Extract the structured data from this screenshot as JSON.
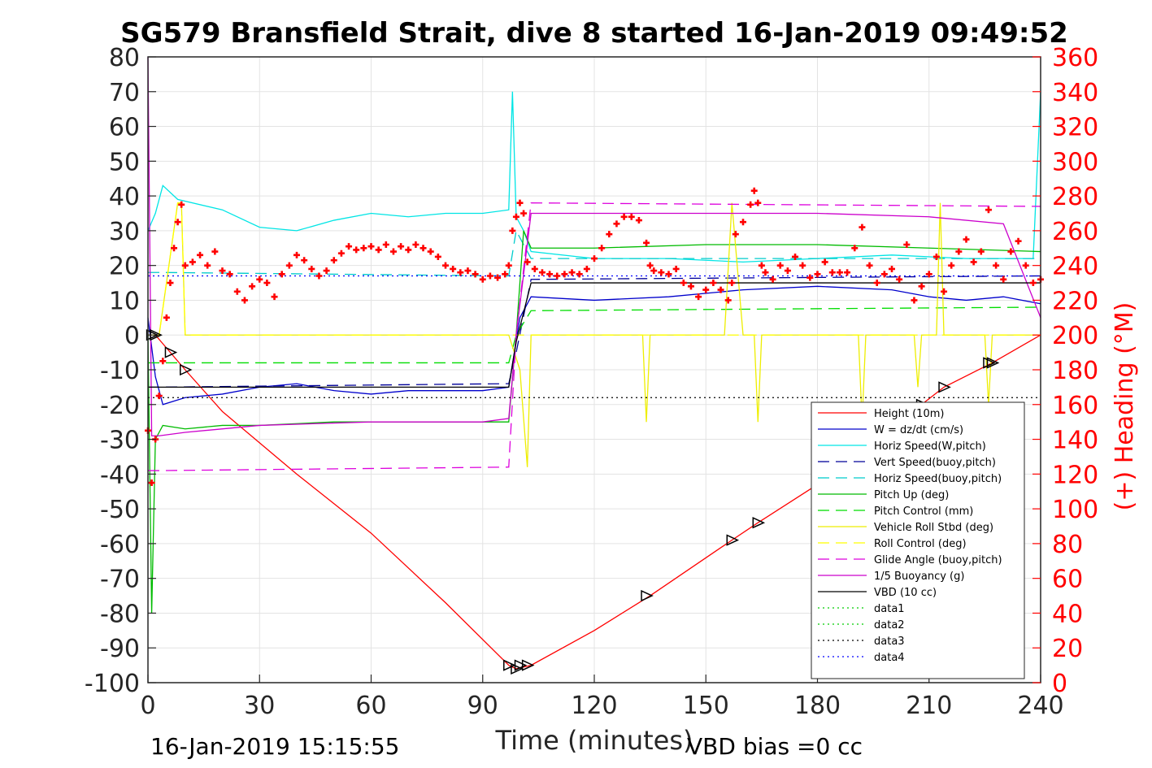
{
  "chart_data": {
    "type": "line",
    "title": "SG579 Bransfield Strait, dive 8 started 16-Jan-2019 09:49:52",
    "xlabel": "Time (minutes)",
    "ylabel_right": "(+) Heading (°M)",
    "footer_left": "16-Jan-2019 15:15:55",
    "footer_right": "VBD bias =0 cc",
    "xlim": [
      0,
      240
    ],
    "ylim": [
      -100,
      80
    ],
    "ylim_right": [
      0,
      360
    ],
    "xticks": [
      0,
      30,
      60,
      90,
      120,
      150,
      180,
      210,
      240
    ],
    "yticks": [
      80,
      70,
      60,
      50,
      40,
      30,
      20,
      10,
      0,
      -10,
      -20,
      -30,
      -40,
      -50,
      -60,
      -70,
      -80,
      -90,
      -100
    ],
    "yticks_right": [
      360,
      340,
      320,
      300,
      280,
      260,
      240,
      220,
      200,
      180,
      160,
      140,
      120,
      100,
      80,
      60,
      40,
      20,
      0
    ],
    "grid": true,
    "legend_position": "bottom-right",
    "series": [
      {
        "name": "Height (10m)",
        "color": "#ff0000",
        "style": "solid",
        "x": [
          0,
          1,
          2,
          10,
          20,
          40,
          60,
          80,
          97,
          99,
          103,
          120,
          135,
          157,
          164,
          180,
          208,
          214,
          227,
          240
        ],
        "y": [
          0,
          0,
          0,
          -10,
          -22,
          -40,
          -57,
          -77,
          -95,
          -96,
          -95,
          -85,
          -75,
          -59,
          -54,
          -43,
          -20,
          -15,
          -8,
          0
        ]
      },
      {
        "name": "W = dz/dt (cm/s)",
        "color": "#0000cc",
        "style": "solid",
        "x": [
          0,
          2,
          4,
          10,
          20,
          30,
          40,
          50,
          60,
          70,
          80,
          90,
          97,
          100,
          103,
          120,
          140,
          160,
          180,
          200,
          210,
          220,
          230,
          240
        ],
        "y": [
          5,
          -12,
          -20,
          -18,
          -17,
          -15,
          -14,
          -16,
          -17,
          -16,
          -16,
          -16,
          -15,
          5,
          11,
          10,
          11,
          13,
          14,
          13,
          11,
          10,
          11,
          9
        ]
      },
      {
        "name": "Horiz Speed(W,pitch)",
        "color": "#00e5e5",
        "style": "solid",
        "x": [
          0,
          2,
          4,
          8,
          20,
          30,
          40,
          50,
          60,
          70,
          80,
          90,
          97,
          98,
          99,
          101,
          103,
          120,
          140,
          160,
          180,
          200,
          220,
          238,
          240
        ],
        "y": [
          30,
          35,
          43,
          39,
          36,
          31,
          30,
          33,
          35,
          34,
          35,
          35,
          36,
          70,
          34,
          30,
          24,
          22,
          22,
          21,
          22,
          23,
          22,
          22,
          70
        ]
      },
      {
        "name": "Vert Speed(buoy,pitch)",
        "color": "#000099",
        "style": "dashed",
        "x": [
          0,
          3,
          97,
          99,
          103,
          240
        ],
        "y": [
          -15,
          -15,
          -14,
          -5,
          16,
          17
        ]
      },
      {
        "name": "Horiz Speed(buoy,pitch)",
        "color": "#00cccc",
        "style": "dashed",
        "x": [
          0,
          3,
          97,
          99,
          103,
          240
        ],
        "y": [
          18,
          18,
          17,
          30,
          22,
          22
        ]
      },
      {
        "name": "Pitch Up (deg)",
        "color": "#00bb00",
        "style": "solid",
        "x": [
          0,
          1,
          2,
          4,
          10,
          20,
          30,
          50,
          70,
          90,
          97,
          99,
          101,
          103,
          120,
          150,
          180,
          210,
          240
        ],
        "y": [
          0,
          -80,
          -30,
          -26,
          -27,
          -26,
          -26,
          -25,
          -25,
          -25,
          -25,
          0,
          30,
          25,
          25,
          26,
          26,
          25,
          24
        ]
      },
      {
        "name": "Pitch Control (mm)",
        "color": "#00dd00",
        "style": "dashed",
        "x": [
          0,
          3,
          97,
          99,
          103,
          240
        ],
        "y": [
          -8,
          -8,
          -8,
          0,
          7,
          8
        ]
      },
      {
        "name": "Vehicle Roll Stbd (deg)",
        "color": "#eeee00",
        "style": "solid",
        "x": [
          0,
          3,
          8,
          9,
          10,
          30,
          60,
          90,
          97,
          100,
          102,
          103,
          120,
          133,
          134,
          135,
          155,
          157,
          160,
          163,
          164,
          165,
          180,
          191,
          192,
          193,
          206,
          207,
          208,
          212,
          213,
          214,
          225,
          226,
          227,
          240
        ],
        "y": [
          0,
          0,
          38,
          38,
          0,
          0,
          0,
          0,
          0,
          -10,
          -38,
          0,
          0,
          0,
          -25,
          0,
          0,
          38,
          0,
          0,
          -25,
          0,
          0,
          0,
          -25,
          0,
          0,
          -15,
          0,
          0,
          38,
          0,
          0,
          -20,
          0,
          0
        ]
      },
      {
        "name": "Roll Control (deg)",
        "color": "#ffff00",
        "style": "dashed",
        "x": [
          0,
          3,
          8,
          9,
          10,
          240
        ],
        "y": [
          0,
          0,
          38,
          38,
          0,
          0
        ]
      },
      {
        "name": "Glide Angle (buoy,pitch)",
        "color": "#dd00dd",
        "style": "dashed",
        "x": [
          0,
          3,
          97,
          99,
          103,
          240
        ],
        "y": [
          -39,
          -39,
          -38,
          0,
          38,
          37
        ]
      },
      {
        "name": "1/5 Buoyancy (g)",
        "color": "#cc00cc",
        "style": "solid",
        "x": [
          0,
          1,
          3,
          10,
          30,
          60,
          90,
          97,
          99,
          103,
          120,
          150,
          180,
          210,
          230,
          240
        ],
        "y": [
          80,
          -29,
          -29,
          -28,
          -26,
          -25,
          -25,
          -24,
          0,
          35,
          35,
          35,
          35,
          34,
          32,
          5
        ]
      },
      {
        "name": "VBD (10 cc)",
        "color": "#000000",
        "style": "solid",
        "x": [
          0,
          3,
          97,
          99,
          103,
          240
        ],
        "y": [
          -15,
          -15,
          -15,
          -2,
          15,
          15
        ]
      },
      {
        "name": "data1",
        "color": "#00cc00",
        "style": "dotted",
        "x": [],
        "y": []
      },
      {
        "name": "data2",
        "color": "#00cc00",
        "style": "dotted",
        "x": [],
        "y": []
      },
      {
        "name": "data3",
        "color": "#000000",
        "style": "dotted",
        "x": [
          0,
          240
        ],
        "y": [
          -18,
          -18
        ]
      },
      {
        "name": "data4",
        "color": "#0000ff",
        "style": "dotted",
        "x": [
          0,
          240
        ],
        "y": [
          17,
          17
        ]
      }
    ],
    "heading_series": {
      "color": "#ff0000",
      "marker": "plus",
      "x": [
        0,
        1,
        2,
        3,
        4,
        5,
        6,
        7,
        8,
        9,
        10,
        12,
        14,
        16,
        18,
        20,
        22,
        24,
        26,
        28,
        30,
        32,
        34,
        36,
        38,
        40,
        42,
        44,
        46,
        48,
        50,
        52,
        54,
        56,
        58,
        60,
        62,
        64,
        66,
        68,
        70,
        72,
        74,
        76,
        78,
        80,
        82,
        84,
        86,
        88,
        90,
        92,
        94,
        96,
        97,
        98,
        99,
        100,
        101,
        102,
        104,
        106,
        108,
        110,
        112,
        114,
        116,
        118,
        120,
        122,
        124,
        126,
        128,
        130,
        132,
        134,
        135,
        136,
        138,
        140,
        142,
        144,
        146,
        148,
        150,
        152,
        154,
        156,
        157,
        158,
        160,
        162,
        163,
        164,
        165,
        166,
        168,
        170,
        172,
        174,
        176,
        178,
        180,
        182,
        184,
        186,
        188,
        190,
        192,
        194,
        196,
        198,
        200,
        202,
        204,
        206,
        208,
        210,
        212,
        214,
        216,
        218,
        220,
        222,
        224,
        226,
        228,
        230,
        232,
        234,
        236,
        238,
        240
      ],
      "y": [
        145,
        115,
        140,
        165,
        185,
        210,
        230,
        250,
        265,
        275,
        240,
        242,
        246,
        240,
        248,
        237,
        235,
        225,
        220,
        228,
        232,
        230,
        222,
        235,
        240,
        246,
        243,
        238,
        234,
        237,
        243,
        247,
        251,
        249,
        250,
        251,
        249,
        252,
        248,
        251,
        249,
        252,
        250,
        248,
        245,
        240,
        238,
        236,
        237,
        235,
        232,
        234,
        233,
        235,
        240,
        260,
        268,
        276,
        270,
        242,
        238,
        236,
        235,
        234,
        235,
        236,
        235,
        238,
        244,
        250,
        258,
        264,
        268,
        268,
        266,
        253,
        240,
        237,
        236,
        235,
        238,
        230,
        228,
        222,
        226,
        230,
        226,
        220,
        230,
        258,
        265,
        275,
        283,
        276,
        240,
        236,
        232,
        240,
        237,
        245,
        240,
        233,
        235,
        242,
        236,
        236,
        236,
        250,
        262,
        240,
        230,
        235,
        238,
        232,
        252,
        220,
        228,
        235,
        245,
        225,
        240,
        248,
        255,
        242,
        248,
        272,
        240,
        232,
        248,
        254,
        240,
        230,
        232
      ]
    },
    "markers": {
      "symbol": "triangle",
      "color": "#000000",
      "x": [
        1,
        2,
        6,
        10,
        97,
        99,
        100,
        102,
        134,
        157,
        164,
        208,
        214,
        226,
        227
      ],
      "y": [
        0,
        0,
        -5,
        -10,
        -95,
        -96,
        -95,
        -95,
        -75,
        -59,
        -54,
        -20,
        -15,
        -8,
        -8
      ]
    }
  }
}
